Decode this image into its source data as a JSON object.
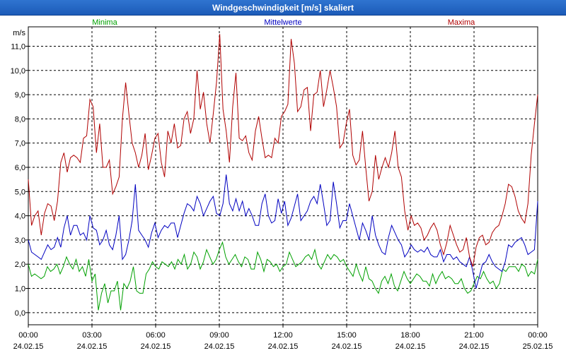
{
  "window": {
    "title": "Windgeschwindigkeit [m/s] skaliert"
  },
  "chart_data": {
    "type": "line",
    "title": "Windgeschwindigkeit [m/s] skaliert",
    "ylabel": "m/s",
    "xlabel": "",
    "ylim": [
      -0.5,
      11.8
    ],
    "xlim": [
      0,
      24
    ],
    "y_ticks": [
      "0,0",
      "1,0",
      "2,0",
      "3,0",
      "4,0",
      "5,0",
      "6,0",
      "7,0",
      "8,0",
      "9,0",
      "10,0",
      "11,0"
    ],
    "x_ticks": [
      {
        "time": "00:00",
        "date": "24.02.15"
      },
      {
        "time": "03:00",
        "date": "24.02.15"
      },
      {
        "time": "06:00",
        "date": "24.02.15"
      },
      {
        "time": "09:00",
        "date": "24.02.15"
      },
      {
        "time": "12:00",
        "date": "24.02.15"
      },
      {
        "time": "15:00",
        "date": "24.02.15"
      },
      {
        "time": "18:00",
        "date": "24.02.15"
      },
      {
        "time": "21:00",
        "date": "24.02.15"
      },
      {
        "time": "00:00",
        "date": "25.02.15"
      }
    ],
    "grid": true,
    "series": [
      {
        "name": "Minima",
        "color": "#00a000",
        "values": [
          2.0,
          1.5,
          1.6,
          1.5,
          1.4,
          1.5,
          1.9,
          1.7,
          1.8,
          2.0,
          1.6,
          1.9,
          2.3,
          2.0,
          1.8,
          2.2,
          1.7,
          1.9,
          1.5,
          2.2,
          1.3,
          1.6,
          0.1,
          0.8,
          1.2,
          0.4,
          0.9,
          0.9,
          1.3,
          0.1,
          1.2,
          1.0,
          1.3,
          1.9,
          0.9,
          0.8,
          0.8,
          1.6,
          1.8,
          2.1,
          1.9,
          1.8,
          2.1,
          2.0,
          1.9,
          2.1,
          1.8,
          2.2,
          2.0,
          2.4,
          1.8,
          2.0,
          2.5,
          2.3,
          1.8,
          2.1,
          2.6,
          2.3,
          2.0,
          2.2,
          2.6,
          2.9,
          2.3,
          2.0,
          2.2,
          2.4,
          2.1,
          1.9,
          2.3,
          2.2,
          1.8,
          1.8,
          2.5,
          2.2,
          1.7,
          2.2,
          2.1,
          1.9,
          2.0,
          1.7,
          1.9,
          2.0,
          2.5,
          2.2,
          1.9,
          2.0,
          2.1,
          2.3,
          2.4,
          2.2,
          2.6,
          2.0,
          1.8,
          2.1,
          2.4,
          2.2,
          2.4,
          2.3,
          2.1,
          2.2,
          1.9,
          1.7,
          1.5,
          2.0,
          1.6,
          1.3,
          1.9,
          1.4,
          1.3,
          1.0,
          0.8,
          1.3,
          1.5,
          1.2,
          1.6,
          1.1,
          0.9,
          1.3,
          1.7,
          1.4,
          1.2,
          1.4,
          1.6,
          1.5,
          1.3,
          1.3,
          1.1,
          1.6,
          1.2,
          1.5,
          1.7,
          1.4,
          1.5,
          1.4,
          1.2,
          1.2,
          1.4,
          1.0,
          0.8,
          0.9,
          1.2,
          1.5,
          1.4,
          1.7,
          1.4,
          1.2,
          1.3,
          1.0,
          1.2,
          1.8,
          1.7,
          1.9,
          1.9,
          1.9,
          1.7,
          2.0,
          1.9,
          1.5,
          1.7,
          1.6,
          2.2
        ]
      },
      {
        "name": "Mittelwerte",
        "color": "#0000c0",
        "values": [
          3.0,
          2.5,
          2.4,
          2.3,
          2.2,
          2.5,
          2.8,
          2.6,
          2.7,
          3.1,
          2.7,
          3.5,
          4.0,
          3.2,
          3.6,
          3.6,
          3.2,
          3.3,
          3.0,
          4.0,
          3.5,
          3.4,
          2.8,
          3.0,
          3.4,
          2.8,
          2.6,
          3.2,
          4.0,
          2.2,
          2.4,
          3.0,
          3.8,
          5.3,
          3.4,
          3.2,
          3.0,
          2.7,
          3.3,
          3.7,
          3.1,
          3.4,
          3.6,
          3.5,
          3.7,
          3.7,
          3.1,
          3.6,
          4.1,
          4.5,
          4.4,
          4.2,
          4.8,
          4.5,
          4.0,
          4.3,
          4.6,
          4.8,
          4.1,
          4.0,
          4.5,
          5.7,
          4.5,
          4.2,
          4.7,
          4.2,
          4.6,
          4.0,
          4.3,
          4.0,
          3.6,
          3.6,
          4.5,
          4.9,
          4.0,
          3.7,
          3.8,
          4.7,
          4.1,
          4.6,
          3.6,
          3.9,
          4.4,
          4.9,
          3.8,
          4.0,
          4.2,
          4.6,
          4.8,
          4.5,
          5.3,
          4.5,
          3.6,
          3.8,
          5.4,
          4.5,
          3.5,
          3.8,
          3.8,
          4.5,
          4.0,
          3.5,
          3.0,
          3.7,
          3.4,
          3.0,
          4.0,
          3.2,
          2.8,
          2.5,
          2.4,
          3.1,
          3.6,
          3.3,
          3.0,
          2.8,
          2.3,
          2.5,
          2.8,
          2.6,
          2.5,
          2.6,
          2.5,
          2.7,
          2.4,
          2.3,
          2.3,
          2.6,
          2.1,
          2.4,
          2.4,
          2.2,
          2.3,
          2.1,
          2.0,
          1.9,
          2.3,
          1.7,
          1.0,
          1.5,
          2.0,
          2.1,
          2.4,
          2.1,
          1.9,
          1.8,
          1.7,
          2.1,
          2.8,
          2.7,
          2.9,
          3.0,
          3.1,
          2.8,
          2.4,
          2.5,
          2.6,
          4.6
        ]
      },
      {
        "name": "Maxima",
        "color": "#b00000",
        "values": [
          5.5,
          3.6,
          4.0,
          4.2,
          3.2,
          4.1,
          4.5,
          4.4,
          3.8,
          4.6,
          6.2,
          6.6,
          5.8,
          6.4,
          6.5,
          6.4,
          6.2,
          7.2,
          7.3,
          8.8,
          8.5,
          6.6,
          7.8,
          6.0,
          6.0,
          6.3,
          4.9,
          5.2,
          5.6,
          8.0,
          9.5,
          8.2,
          7.0,
          6.6,
          6.0,
          6.5,
          7.4,
          5.9,
          6.5,
          7.2,
          7.4,
          6.2,
          5.6,
          7.5,
          7.0,
          7.8,
          6.8,
          6.9,
          8.0,
          8.3,
          7.4,
          8.0,
          10.0,
          8.4,
          9.1,
          7.8,
          7.0,
          8.2,
          9.5,
          11.5,
          8.4,
          7.5,
          6.2,
          8.5,
          9.9,
          7.2,
          7.1,
          7.3,
          6.6,
          6.3,
          7.5,
          8.1,
          7.2,
          6.4,
          6.5,
          6.4,
          7.2,
          7.0,
          8.1,
          8.3,
          8.6,
          11.3,
          10.3,
          8.3,
          8.5,
          9.2,
          9.3,
          7.5,
          9.0,
          9.1,
          10.0,
          8.5,
          9.2,
          10.0,
          9.3,
          8.5,
          6.8,
          7.0,
          7.8,
          8.4,
          6.5,
          6.1,
          6.3,
          7.5,
          6.0,
          4.6,
          5.0,
          6.5,
          5.5,
          6.0,
          6.4,
          6.0,
          6.6,
          7.5,
          6.0,
          5.6,
          4.2,
          3.4,
          4.0,
          3.6,
          3.7,
          3.5,
          3.0,
          3.2,
          3.5,
          3.7,
          3.4,
          2.8,
          2.4,
          2.9,
          3.6,
          3.2,
          2.8,
          2.5,
          2.6,
          3.1,
          2.3,
          1.9,
          2.7,
          3.1,
          3.2,
          2.8,
          2.9,
          3.3,
          3.5,
          3.6,
          4.0,
          4.5,
          5.3,
          5.2,
          4.8,
          4.2,
          3.9,
          3.7,
          4.5,
          6.5,
          7.8,
          9.0
        ]
      }
    ]
  }
}
